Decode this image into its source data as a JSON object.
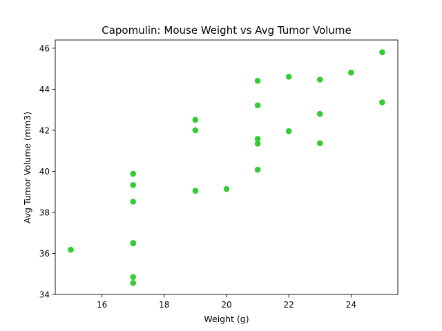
{
  "chart_data": {
    "type": "scatter",
    "title": "Capomulin: Mouse Weight vs Avg Tumor Volume",
    "xlabel": "Weight (g)",
    "ylabel": "Avg Tumor Volume (mm3)",
    "xlim": [
      14.5,
      25.5
    ],
    "ylim": [
      34.0,
      46.4
    ],
    "xticks": [
      16,
      18,
      20,
      22,
      24
    ],
    "yticks": [
      34,
      36,
      38,
      40,
      42,
      44,
      46
    ],
    "grid": false,
    "legend": "none",
    "marker_color": "#32cd32",
    "points": [
      {
        "x": 15,
        "y": 36.18
      },
      {
        "x": 17,
        "y": 39.88
      },
      {
        "x": 17,
        "y": 39.33
      },
      {
        "x": 17,
        "y": 38.52
      },
      {
        "x": 17,
        "y": 36.51
      },
      {
        "x": 17,
        "y": 36.49
      },
      {
        "x": 17,
        "y": 34.85
      },
      {
        "x": 17,
        "y": 34.56
      },
      {
        "x": 19,
        "y": 42.51
      },
      {
        "x": 19,
        "y": 42.0
      },
      {
        "x": 19,
        "y": 39.05
      },
      {
        "x": 20,
        "y": 39.14
      },
      {
        "x": 21,
        "y": 44.41
      },
      {
        "x": 21,
        "y": 43.22
      },
      {
        "x": 21,
        "y": 41.58
      },
      {
        "x": 21,
        "y": 41.35
      },
      {
        "x": 21,
        "y": 40.08
      },
      {
        "x": 22,
        "y": 44.61
      },
      {
        "x": 22,
        "y": 41.96
      },
      {
        "x": 23,
        "y": 44.47
      },
      {
        "x": 23,
        "y": 42.8
      },
      {
        "x": 23,
        "y": 41.37
      },
      {
        "x": 24,
        "y": 44.81
      },
      {
        "x": 25,
        "y": 45.8
      },
      {
        "x": 25,
        "y": 43.36
      }
    ]
  }
}
